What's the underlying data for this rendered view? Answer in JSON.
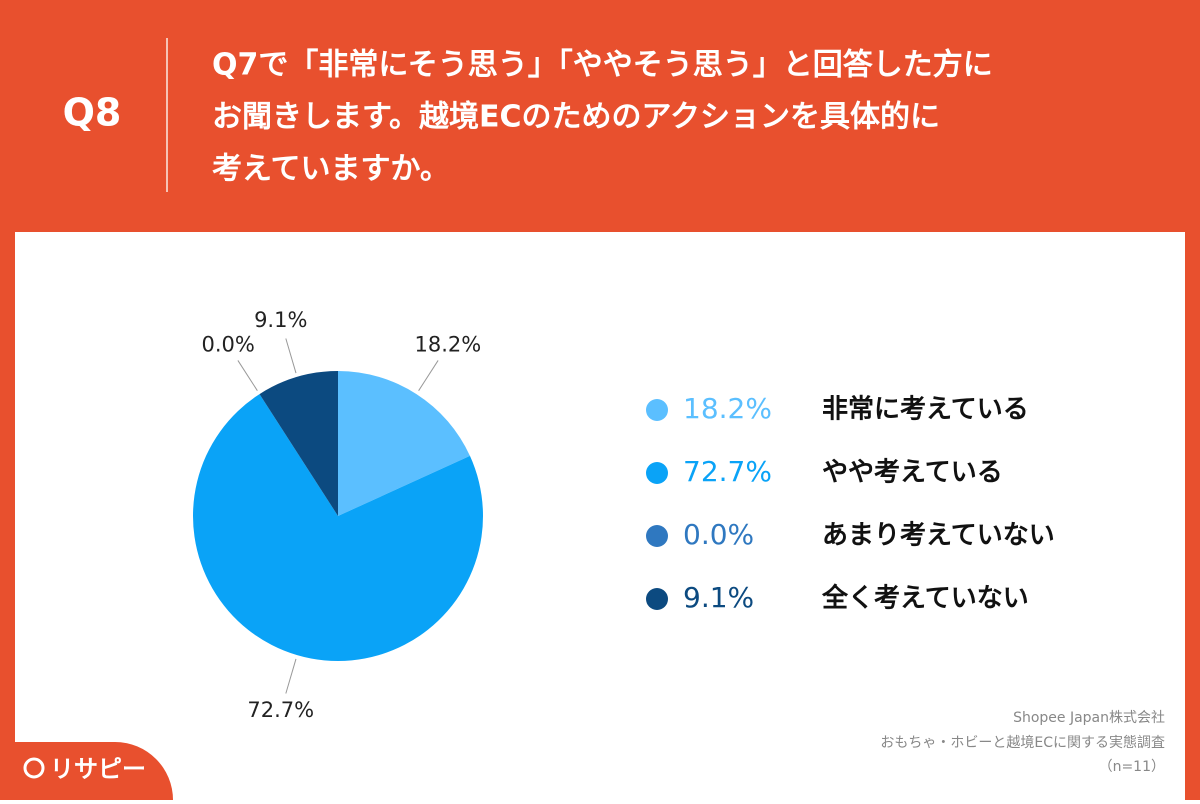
{
  "header": {
    "number": "Q8",
    "question": [
      "Q7で「非常にそう思う」「ややそう思う」と回答した方に",
      "お聞きします。越境ECのためのアクションを具体的に",
      "考えていますか。"
    ]
  },
  "chart_data": {
    "type": "pie",
    "categories": [
      "非常に考えている",
      "やや考えている",
      "あまり考えていない",
      "全く考えていない"
    ],
    "values": [
      18.2,
      72.7,
      0.0,
      9.1
    ],
    "value_labels": [
      "18.2%",
      "72.7%",
      "0.0%",
      "9.1%"
    ],
    "colors": [
      "#5bbfff",
      "#0aa3f7",
      "#2f78c0",
      "#0c4a80"
    ]
  },
  "source": [
    "Shopee Japan株式会社",
    "おもちゃ・ホビーと越境ECに関する実態調査",
    "（n=11）"
  ],
  "logo": "リサピー"
}
